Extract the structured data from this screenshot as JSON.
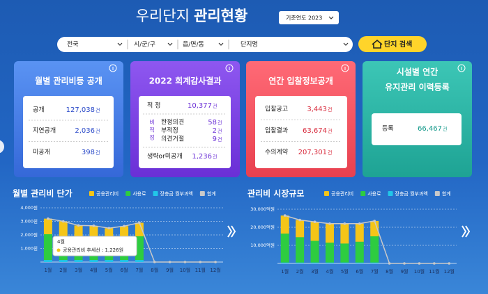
{
  "header": {
    "title_light": "우리단지",
    "title_bold": "관리현황",
    "year_select": "기준연도 2023"
  },
  "filters": {
    "region": "전국",
    "city": "시/군/구",
    "town": "읍/면/동",
    "complex": "단지명",
    "search_button": "단지 검색"
  },
  "cards": [
    {
      "title": [
        "월별 관리비등 공개"
      ],
      "rows": [
        {
          "label": "공개",
          "value": "127,038",
          "unit": "건"
        },
        {
          "label": "지연공개",
          "value": "2,036",
          "unit": "건"
        },
        {
          "label": "미공개",
          "value": "398",
          "unit": "건"
        }
      ]
    },
    {
      "title": [
        "2022 회계감사결과"
      ],
      "rows": [
        {
          "label": "적 정",
          "value": "10,377",
          "unit": "건"
        },
        {
          "label": "생략or미공개",
          "value": "1,236",
          "unit": "건"
        }
      ],
      "group": {
        "label": "비적정",
        "rows": [
          {
            "label": "한정의견",
            "value": "58",
            "unit": "건"
          },
          {
            "label": "부적정",
            "value": "2",
            "unit": "건"
          },
          {
            "label": "의견거절",
            "value": "9",
            "unit": "건"
          }
        ]
      }
    },
    {
      "title": [
        "연간 입찰정보공개"
      ],
      "rows": [
        {
          "label": "입찰공고",
          "value": "3,443",
          "unit": "건"
        },
        {
          "label": "입찰결과",
          "value": "63,674",
          "unit": "건"
        },
        {
          "label": "수의계약",
          "value": "207,301",
          "unit": "건"
        }
      ]
    },
    {
      "title": [
        "시설별 연간",
        "유지관리 이력등록"
      ],
      "rows": [
        {
          "label": "등록",
          "value": "66,467",
          "unit": "건"
        }
      ]
    }
  ],
  "chart_data": [
    {
      "type": "bar",
      "stacked": true,
      "title": "월별 관리비 단가",
      "categories": [
        "1월",
        "2월",
        "3월",
        "4월",
        "5월",
        "6월",
        "7월",
        "8월",
        "9월",
        "10월",
        "11월",
        "12월"
      ],
      "series": [
        {
          "name": "공용관리비",
          "color": "#f5c518",
          "type": "bar",
          "values": [
            1150,
            1100,
            1000,
            1226,
            1000,
            1050,
            1000,
            0,
            0,
            0,
            0,
            0
          ]
        },
        {
          "name": "사용료",
          "color": "#2ecc40",
          "type": "bar",
          "values": [
            1900,
            1750,
            1550,
            1300,
            1350,
            1450,
            1750,
            0,
            0,
            0,
            0,
            0
          ]
        },
        {
          "name": "장충금 월부과액",
          "color": "#22c7e8",
          "type": "bar",
          "values": [
            150,
            150,
            150,
            150,
            150,
            150,
            150,
            0,
            0,
            0,
            0,
            0
          ]
        },
        {
          "name": "합계",
          "color": "#c9c9c9",
          "type": "line",
          "values": [
            3200,
            3000,
            2700,
            2676,
            2500,
            2650,
            2900,
            0,
            0,
            0,
            0,
            0
          ]
        }
      ],
      "ylim": [
        0,
        4000
      ],
      "yticks": [
        {
          "value": 1000,
          "label": "1,000원"
        },
        {
          "value": 2000,
          "label": "2,000원"
        },
        {
          "value": 3000,
          "label": "3,000원"
        },
        {
          "value": 4000,
          "label": "4,000원"
        }
      ],
      "grid": true,
      "tooltip": {
        "title": "4월",
        "text": "공용관리비 추세선 : 1,226원"
      }
    },
    {
      "type": "bar",
      "stacked": true,
      "title": "관리비 시장규모",
      "categories": [
        "1월",
        "2월",
        "3월",
        "4월",
        "5월",
        "6월",
        "7월",
        "8월",
        "9월",
        "10월",
        "11월",
        "12월"
      ],
      "series": [
        {
          "name": "공용관리비",
          "color": "#f5c518",
          "type": "bar",
          "values": [
            10000,
            9500,
            10500,
            10500,
            11000,
            10000,
            8500,
            0,
            0,
            0,
            0,
            0
          ]
        },
        {
          "name": "사용료",
          "color": "#2ecc40",
          "type": "bar",
          "values": [
            16000,
            14000,
            12000,
            11000,
            10500,
            11500,
            14500,
            0,
            0,
            0,
            0,
            0
          ]
        },
        {
          "name": "장충금 월부과액",
          "color": "#22c7e8",
          "type": "bar",
          "values": [
            500,
            500,
            500,
            500,
            500,
            500,
            500,
            0,
            0,
            0,
            0,
            0
          ]
        },
        {
          "name": "합계",
          "color": "#c9c9c9",
          "type": "line",
          "values": [
            26500,
            24000,
            23000,
            22000,
            22000,
            22000,
            23500,
            0,
            0,
            0,
            0,
            0
          ]
        }
      ],
      "ylim": [
        0,
        33000
      ],
      "yticks": [
        {
          "value": 10000,
          "label": "10,000억원"
        },
        {
          "value": 20000,
          "label": "20,000억원"
        },
        {
          "value": 30000,
          "label": "30,000억원"
        }
      ],
      "grid": true
    }
  ]
}
